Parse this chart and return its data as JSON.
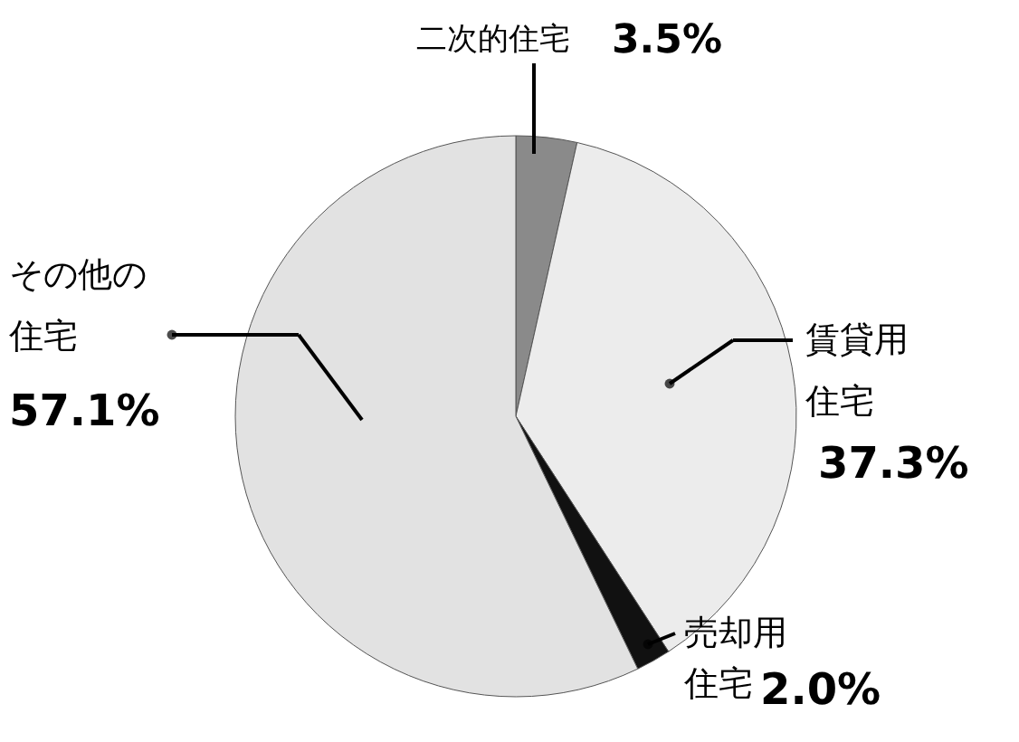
{
  "chart_data": {
    "type": "pie",
    "categories": [
      "二次的住宅",
      "賃貸用住宅",
      "売却用住宅",
      "その他の住宅"
    ],
    "values": [
      3.5,
      37.3,
      2.0,
      57.1
    ],
    "value_labels": [
      "3.5%",
      "37.3%",
      "2.0%",
      "57.1%"
    ],
    "colors": [
      "#8a8a8a",
      "#ececec",
      "#111111",
      "#e2e2e2"
    ],
    "legend": false
  }
}
